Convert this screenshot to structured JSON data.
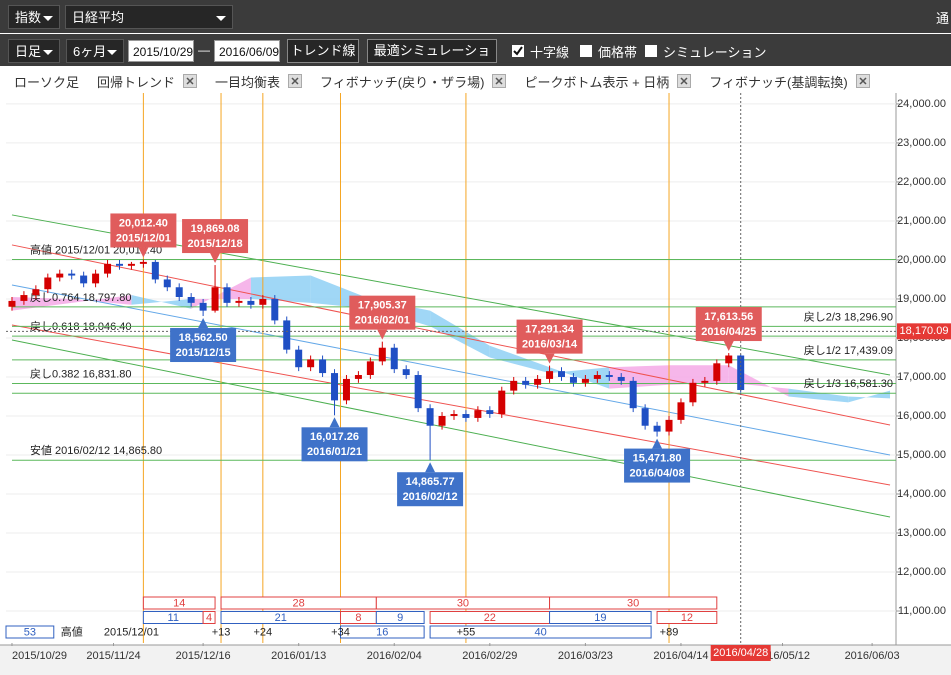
{
  "toolbar": {
    "market_type": "指数",
    "index_name": "日経平均",
    "cut_off": "通",
    "period_unit": "日足",
    "range": "6ヶ月",
    "date_from": "2015/10/29",
    "date_sep": "—",
    "date_to": "2016/06/09",
    "buttons": [
      "トレンド線",
      "最適シミュレーション"
    ],
    "checkboxes": [
      {
        "label": "十字線",
        "checked": true
      },
      {
        "label": "価格帯",
        "checked": false
      },
      {
        "label": "シミュレーション",
        "checked": false
      }
    ]
  },
  "indicator_tabs": [
    {
      "label": "ローソク足",
      "closable": false
    },
    {
      "label": "回帰トレンド",
      "closable": true
    },
    {
      "label": "一目均衡表",
      "closable": true
    },
    {
      "label": "フィボナッチ(戻り・ザラ場)",
      "closable": true
    },
    {
      "label": "ピークボトム表示 + 日柄",
      "closable": true
    },
    {
      "label": "フィボナッチ(基調転換)",
      "closable": true
    }
  ],
  "chart_data": {
    "type": "candlestick",
    "xlim": [
      -1,
      148
    ],
    "ylim": [
      10180,
      24280
    ],
    "xticks": [
      {
        "value": 0,
        "label": "2015/10/29"
      },
      {
        "value": 17,
        "label": "2015/11/24"
      },
      {
        "value": 32,
        "label": "2015/12/16"
      },
      {
        "value": 48,
        "label": "2016/01/13"
      },
      {
        "value": 64,
        "label": "2016/02/04"
      },
      {
        "value": 80,
        "label": "2016/02/29"
      },
      {
        "value": 96,
        "label": "2016/03/23"
      },
      {
        "value": 112,
        "label": "2016/04/14"
      },
      {
        "value": 129,
        "label": "2016/05/12"
      },
      {
        "value": 144,
        "label": "2016/06/03"
      }
    ],
    "yticks": [
      {
        "value": 11000,
        "label": "11,000.00"
      },
      {
        "value": 12000,
        "label": "12,000.00"
      },
      {
        "value": 13000,
        "label": "13,000.00"
      },
      {
        "value": 14000,
        "label": "14,000.00"
      },
      {
        "value": 15000,
        "label": "15,000.00"
      },
      {
        "value": 16000,
        "label": "16,000.00"
      },
      {
        "value": 17000,
        "label": "17,000.00"
      },
      {
        "value": 18000,
        "label": "18,000.00"
      },
      {
        "value": 19000,
        "label": "19,000.00"
      },
      {
        "value": 20000,
        "label": "20,000.00"
      },
      {
        "value": 21000,
        "label": "21,000.00"
      },
      {
        "value": 22000,
        "label": "22,000.00"
      },
      {
        "value": 23000,
        "label": "23,000.00"
      },
      {
        "value": 24000,
        "label": "24,000.00"
      }
    ],
    "grid": true,
    "up_color": "#d40000",
    "down_color": "#1f4fc4",
    "x": [
      0,
      2,
      4,
      6,
      8,
      10,
      12,
      14,
      16,
      18,
      20,
      22,
      24,
      26,
      28,
      30,
      32,
      34,
      36,
      38,
      40,
      42,
      44,
      46,
      48,
      50,
      52,
      54,
      56,
      58,
      60,
      62,
      64,
      66,
      68,
      70,
      72,
      74,
      76,
      78,
      80,
      82,
      84,
      86,
      88,
      90,
      92,
      94,
      96,
      98,
      100,
      102,
      104,
      106,
      108,
      110,
      112,
      114,
      116,
      118,
      120,
      122
    ],
    "open": [
      18800,
      18950,
      19100,
      19250,
      19550,
      19650,
      19600,
      19400,
      19650,
      19900,
      19850,
      19900,
      19950,
      19500,
      19300,
      19050,
      18900,
      18700,
      19300,
      18900,
      18950,
      18850,
      19000,
      18450,
      17700,
      17250,
      17450,
      17100,
      16400,
      16950,
      17050,
      17400,
      17750,
      17200,
      17050,
      16200,
      15750,
      16000,
      16050,
      15950,
      16150,
      16050,
      16650,
      16900,
      16800,
      16950,
      17150,
      17000,
      16850,
      16950,
      17050,
      17000,
      16900,
      16200,
      15750,
      15600,
      15900,
      16350,
      16850,
      16900,
      17350,
      17550
    ],
    "high": [
      19050,
      19200,
      19350,
      19650,
      19750,
      19750,
      19700,
      19750,
      20000,
      20000,
      19950,
      20012.4,
      20000,
      19600,
      19400,
      19150,
      19000,
      19869.08,
      19400,
      19050,
      19050,
      19100,
      19100,
      18550,
      17800,
      17550,
      17550,
      17200,
      17050,
      17150,
      17500,
      17905.37,
      17850,
      17300,
      17150,
      16300,
      16100,
      16150,
      16150,
      16250,
      16250,
      16750,
      17000,
      17000,
      17050,
      17291.34,
      17250,
      17100,
      17050,
      17150,
      17150,
      17100,
      17000,
      16300,
      15850,
      16000,
      16450,
      16950,
      17000,
      17450,
      17613.56,
      17580
    ],
    "low": [
      18700,
      18850,
      19000,
      19150,
      19450,
      19500,
      19300,
      19300,
      19550,
      19750,
      19750,
      19800,
      19400,
      19200,
      18950,
      18800,
      18562.5,
      18650,
      18800,
      18800,
      18750,
      18750,
      18350,
      17600,
      17150,
      17150,
      17000,
      16017.26,
      16300,
      16850,
      16950,
      17300,
      17100,
      16950,
      16100,
      14865.77,
      15650,
      15900,
      15850,
      15850,
      15950,
      15950,
      16550,
      16700,
      16700,
      16850,
      16900,
      16750,
      16750,
      16850,
      16900,
      16800,
      16100,
      15650,
      15471.8,
      15500,
      15800,
      16250,
      16750,
      16800,
      17250,
      16600
    ],
    "close": [
      18950,
      19100,
      19250,
      19550,
      19650,
      19600,
      19400,
      19650,
      19900,
      19850,
      19900,
      19950,
      19500,
      19300,
      19050,
      18900,
      18700,
      19300,
      18900,
      18950,
      18850,
      19000,
      18450,
      17700,
      17250,
      17450,
      17100,
      16400,
      16950,
      17050,
      17400,
      17750,
      17200,
      17050,
      16200,
      15750,
      16000,
      16050,
      15950,
      16150,
      16050,
      16650,
      16900,
      16800,
      16950,
      17150,
      17000,
      16850,
      16950,
      17050,
      17000,
      16900,
      16200,
      15750,
      15600,
      15900,
      16350,
      16850,
      16900,
      17350,
      17550,
      16666
    ],
    "cloud": {
      "x": [
        0,
        10,
        20,
        30,
        40,
        50,
        60,
        70,
        80,
        90,
        100,
        110,
        120,
        130,
        140,
        147
      ],
      "span_a": [
        18700,
        18900,
        19100,
        18750,
        19550,
        19600,
        19000,
        18700,
        17800,
        17250,
        16700,
        16800,
        16850,
        16700,
        16500,
        16450
      ],
      "span_b": [
        19050,
        19000,
        18850,
        19000,
        19000,
        18900,
        18750,
        18300,
        17500,
        17100,
        17250,
        17300,
        17300,
        16500,
        16350,
        16650
      ],
      "up_color": "#f5a9e6",
      "down_color": "#8fd0f5"
    },
    "regression_x": [
      0,
      147
    ],
    "regression_lines": [
      {
        "start": 21154,
        "end": 17051,
        "color": "#4caf50"
      },
      {
        "start": 20385,
        "end": 15769,
        "color": "#ef5350"
      },
      {
        "start": 19359,
        "end": 15000,
        "color": "#64a8e8"
      },
      {
        "start": 18333,
        "end": 14231,
        "color": "#ef5350"
      },
      {
        "start": 17949,
        "end": 13410,
        "color": "#4caf50"
      }
    ],
    "fib_color": "#5cb85c",
    "fib_levels": [
      {
        "value": 20012.4,
        "label": "高値 2015/12/01 20,012.40",
        "side": "left"
      },
      {
        "value": 18797.8,
        "label": "戻し0.764 18,797.80",
        "side": "left"
      },
      {
        "value": 18046.4,
        "label": "戻し0.618 18,046.40",
        "side": "left"
      },
      {
        "value": 16831.8,
        "label": "戻し0.382 16,831.80",
        "side": "left"
      },
      {
        "value": 14865.8,
        "label": "安値 2016/02/12 14,865.80",
        "side": "left"
      },
      {
        "value": 18296.9,
        "label": "戻し2/3 18,296.90",
        "side": "right"
      },
      {
        "value": 17439.09,
        "label": "戻し1/2 17,439.09",
        "side": "right"
      },
      {
        "value": 16581.3,
        "label": "戻し1/3 16,581.30",
        "side": "right"
      }
    ],
    "cycle_lines": {
      "color": "#f5a623",
      "x": [
        22,
        35,
        42,
        55,
        76,
        110
      ]
    },
    "high_label_color": "#e05c5c",
    "low_label_color": "#3f72c9",
    "annotations": [
      {
        "kind": "high",
        "x": 22,
        "value": 20012.4,
        "label": "20,012.40",
        "date": "2015/12/01"
      },
      {
        "kind": "high",
        "x": 34,
        "value": 19869.08,
        "label": "19,869.08",
        "date": "2015/12/18"
      },
      {
        "kind": "low",
        "x": 32,
        "value": 18562.5,
        "label": "18,562.50",
        "date": "2015/12/15"
      },
      {
        "kind": "low",
        "x": 54,
        "value": 16017.26,
        "label": "16,017.26",
        "date": "2016/01/21"
      },
      {
        "kind": "high",
        "x": 62,
        "value": 17905.37,
        "label": "17,905.37",
        "date": "2016/02/01"
      },
      {
        "kind": "low",
        "x": 70,
        "value": 14865.77,
        "label": "14,865.77",
        "date": "2016/02/12"
      },
      {
        "kind": "high",
        "x": 90,
        "value": 17291.34,
        "label": "17,291.34",
        "date": "2016/03/14"
      },
      {
        "kind": "low",
        "x": 108,
        "value": 15471.8,
        "label": "15,471.80",
        "date": "2016/04/08"
      },
      {
        "kind": "high",
        "x": 120,
        "value": 17613.56,
        "label": "17,613.56",
        "date": "2016/04/25"
      }
    ],
    "crosshair": {
      "x": 122,
      "value": 18170.09,
      "label": "18,170.09",
      "date_label": "2016/04/28",
      "color": "#e53935"
    },
    "cycle_rows": [
      {
        "boxes": [
          {
            "label": "14",
            "from": 22,
            "to": 34,
            "color": "#e04040"
          },
          {
            "label": "28",
            "from": 35,
            "to": 61,
            "color": "#e04040"
          },
          {
            "label": "30",
            "from": 61,
            "to": 90,
            "color": "#e04040"
          },
          {
            "label": "30",
            "from": 90,
            "to": 118,
            "color": "#e04040"
          }
        ],
        "texts": []
      },
      {
        "boxes": [
          {
            "label": "11",
            "from": 22,
            "to": 32,
            "color": "#3060c0"
          },
          {
            "label": "4",
            "from": 32,
            "to": 34,
            "color": "#e04040"
          },
          {
            "label": "21",
            "from": 35,
            "to": 55,
            "color": "#3060c0"
          },
          {
            "label": "8",
            "from": 55,
            "to": 61,
            "color": "#e04040"
          },
          {
            "label": "9",
            "from": 61,
            "to": 69,
            "color": "#3060c0"
          },
          {
            "label": "22",
            "from": 70,
            "to": 90,
            "color": "#e04040"
          },
          {
            "label": "19",
            "from": 90,
            "to": 107,
            "color": "#3060c0"
          },
          {
            "label": "12",
            "from": 108,
            "to": 118,
            "color": "#e04040"
          }
        ],
        "texts": []
      },
      {
        "boxes": [
          {
            "label": "53",
            "from": -1,
            "to": 7,
            "color": "#3060c0"
          },
          {
            "label": "16",
            "from": 55,
            "to": 69,
            "color": "#3060c0"
          },
          {
            "label": "40",
            "from": 70,
            "to": 107,
            "color": "#3060c0"
          }
        ],
        "texts": [
          {
            "label": "高値",
            "x": 10
          },
          {
            "label": "2015/12/01",
            "x": 20
          },
          {
            "label": "+13",
            "x": 35
          },
          {
            "label": "+24",
            "x": 42
          },
          {
            "label": "+34",
            "x": 55
          },
          {
            "label": "+55",
            "x": 76
          },
          {
            "label": "+89",
            "x": 110
          }
        ]
      }
    ]
  }
}
